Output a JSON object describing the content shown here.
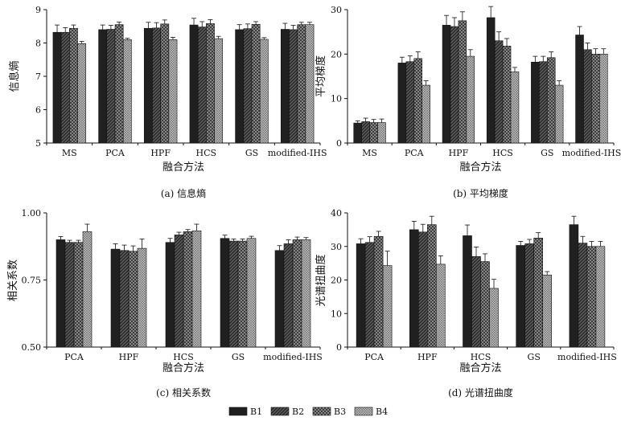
{
  "legend": [
    "B1",
    "B2",
    "B3",
    "B4"
  ],
  "chart_data": [
    {
      "type": "bar",
      "caption": "(a) 信息熵",
      "xlabel": "融合方法",
      "ylabel": "信息熵",
      "ylim": [
        5,
        9
      ],
      "yticks": [
        5,
        6,
        7,
        8,
        9
      ],
      "categories": [
        "MS",
        "PCA",
        "HPF",
        "HCS",
        "GS",
        "modified-IHS"
      ],
      "series": [
        {
          "name": "B1",
          "values": [
            8.32,
            8.4,
            8.44,
            8.54,
            8.4,
            8.41
          ],
          "errors": [
            0.22,
            0.14,
            0.18,
            0.2,
            0.15,
            0.18
          ]
        },
        {
          "name": "B2",
          "values": [
            8.32,
            8.41,
            8.45,
            8.48,
            8.43,
            8.4
          ],
          "errors": [
            0.14,
            0.12,
            0.16,
            0.16,
            0.14,
            0.13
          ]
        },
        {
          "name": "B3",
          "values": [
            8.44,
            8.55,
            8.57,
            8.58,
            8.56,
            8.55
          ],
          "errors": [
            0.1,
            0.08,
            0.12,
            0.12,
            0.08,
            0.07
          ]
        },
        {
          "name": "B4",
          "values": [
            7.98,
            8.1,
            8.1,
            8.13,
            8.11,
            8.55
          ],
          "errors": [
            0.07,
            0.04,
            0.07,
            0.07,
            0.05,
            0.07
          ]
        }
      ]
    },
    {
      "type": "bar",
      "caption": "(b) 平均梯度",
      "xlabel": "融合方法",
      "ylabel": "平均梯度",
      "ylim": [
        0,
        30
      ],
      "yticks": [
        0,
        10,
        20,
        30
      ],
      "categories": [
        "MS",
        "PCA",
        "HPF",
        "HCS",
        "GS",
        "modified-IHS"
      ],
      "series": [
        {
          "name": "B1",
          "values": [
            4.5,
            18.0,
            26.5,
            28.2,
            18.2,
            24.3
          ],
          "errors": [
            0.5,
            1.3,
            2.2,
            2.5,
            1.3,
            1.9
          ]
        },
        {
          "name": "B2",
          "values": [
            4.8,
            18.3,
            26.2,
            23.0,
            18.3,
            21.0
          ],
          "errors": [
            0.8,
            1.3,
            2.0,
            2.0,
            1.2,
            1.5
          ]
        },
        {
          "name": "B3",
          "values": [
            4.6,
            19.0,
            27.5,
            21.8,
            19.2,
            20.0
          ],
          "errors": [
            0.7,
            1.5,
            2.0,
            1.7,
            1.3,
            1.2
          ]
        },
        {
          "name": "B4",
          "values": [
            4.6,
            13.0,
            19.5,
            16.0,
            13.0,
            20.0
          ],
          "errors": [
            0.8,
            1.0,
            1.5,
            1.0,
            1.0,
            1.2
          ]
        }
      ]
    },
    {
      "type": "bar",
      "caption": "(c) 相关系数",
      "xlabel": "融合方法",
      "ylabel": "相关系数",
      "ylim": [
        0.5,
        1.0
      ],
      "yticks": [
        0.5,
        0.75,
        1.0
      ],
      "yticklabels": [
        "0.50",
        "0.75",
        "1.00"
      ],
      "categories": [
        "PCA",
        "HPF",
        "HCS",
        "GS",
        "modified-IHS"
      ],
      "series": [
        {
          "name": "B1",
          "values": [
            0.9,
            0.865,
            0.89,
            0.905,
            0.86
          ],
          "errors": [
            0.012,
            0.02,
            0.015,
            0.012,
            0.018
          ]
        },
        {
          "name": "B2",
          "values": [
            0.89,
            0.86,
            0.918,
            0.895,
            0.885
          ],
          "errors": [
            0.008,
            0.02,
            0.01,
            0.008,
            0.015
          ]
        },
        {
          "name": "B3",
          "values": [
            0.89,
            0.857,
            0.93,
            0.895,
            0.9
          ],
          "errors": [
            0.008,
            0.02,
            0.008,
            0.008,
            0.01
          ]
        },
        {
          "name": "B4",
          "values": [
            0.93,
            0.868,
            0.933,
            0.905,
            0.9
          ],
          "errors": [
            0.028,
            0.035,
            0.025,
            0.008,
            0.008
          ]
        }
      ]
    },
    {
      "type": "bar",
      "caption": "(d) 光谱扭曲度",
      "xlabel": "融合方法",
      "ylabel": "光谱扭曲度",
      "ylim": [
        0,
        40
      ],
      "yticks": [
        0,
        10,
        20,
        30,
        40
      ],
      "categories": [
        "PCA",
        "HPF",
        "HCS",
        "GS",
        "modified-IHS"
      ],
      "series": [
        {
          "name": "B1",
          "values": [
            30.8,
            35.0,
            33.2,
            30.3,
            36.5
          ],
          "errors": [
            1.5,
            2.5,
            3.2,
            1.2,
            2.5
          ]
        },
        {
          "name": "B2",
          "values": [
            31.2,
            34.3,
            27.0,
            30.8,
            31.0
          ],
          "errors": [
            1.7,
            2.3,
            2.8,
            1.3,
            2.0
          ]
        },
        {
          "name": "B3",
          "values": [
            33.0,
            36.5,
            25.5,
            32.5,
            30.0
          ],
          "errors": [
            1.5,
            2.5,
            2.3,
            1.6,
            1.5
          ]
        },
        {
          "name": "B4",
          "values": [
            24.3,
            24.7,
            17.5,
            21.5,
            30.0
          ],
          "errors": [
            4.3,
            2.5,
            2.7,
            1.0,
            1.5
          ]
        }
      ]
    }
  ]
}
